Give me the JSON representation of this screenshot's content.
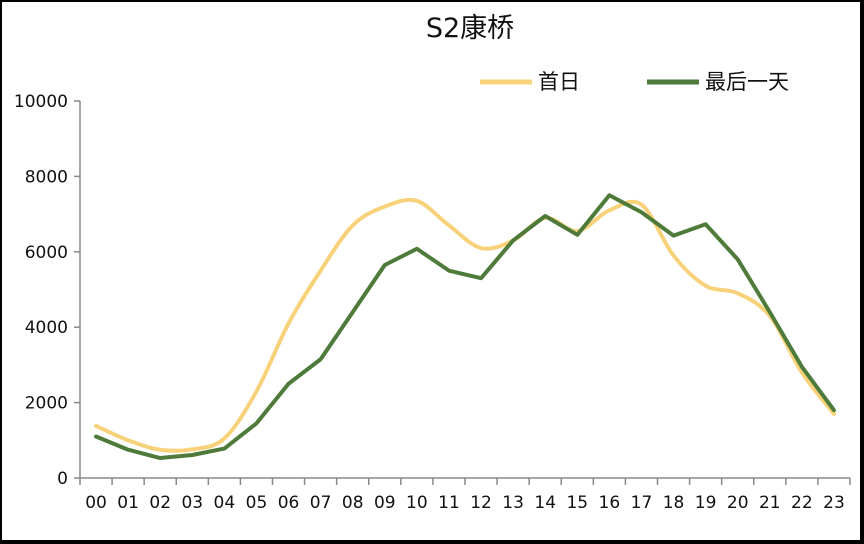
{
  "chart_data": {
    "type": "line",
    "title": "S2康桥",
    "xlabel": "",
    "ylabel": "",
    "categories": [
      "00",
      "01",
      "02",
      "03",
      "04",
      "05",
      "06",
      "07",
      "08",
      "09",
      "10",
      "11",
      "12",
      "13",
      "14",
      "15",
      "16",
      "17",
      "18",
      "19",
      "20",
      "21",
      "22",
      "23"
    ],
    "ylim": [
      0,
      10000
    ],
    "yticks": [
      0,
      2000,
      4000,
      6000,
      8000,
      10000
    ],
    "grid": false,
    "legend_position": "top-right",
    "series": [
      {
        "name": "首日",
        "color": "#F7D27A",
        "values": [
          1380,
          1000,
          750,
          760,
          1050,
          2300,
          4100,
          5500,
          6700,
          7200,
          7350,
          6700,
          6100,
          6300,
          6900,
          6550,
          7100,
          7250,
          5900,
          5100,
          4900,
          4300,
          2800,
          1700
        ]
      },
      {
        "name": "最后一天",
        "color": "#4E7A3A",
        "values": [
          1100,
          750,
          530,
          610,
          780,
          1450,
          2500,
          3150,
          4400,
          5650,
          6080,
          5500,
          5300,
          6300,
          6950,
          6450,
          7500,
          7050,
          6430,
          6730,
          5800,
          4400,
          2950,
          1800
        ]
      }
    ]
  }
}
